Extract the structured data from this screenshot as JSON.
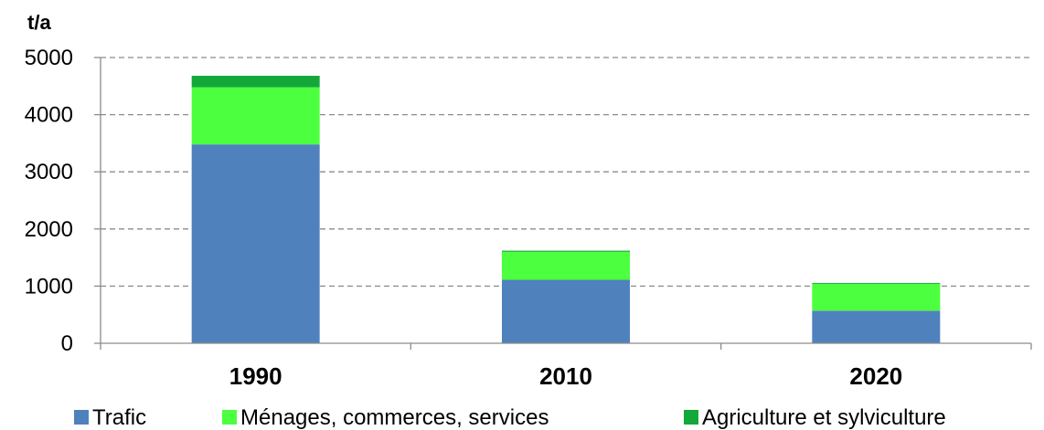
{
  "chart_data": {
    "type": "bar",
    "stacked": true,
    "unit": "t/a",
    "categories": [
      "1990",
      "2010",
      "2020"
    ],
    "series": [
      {
        "name": "Trafic",
        "color": "#4f81bd",
        "values": [
          3480,
          1110,
          570
        ]
      },
      {
        "name": "Ménages, commerces, services",
        "color": "#4cff3f",
        "values": [
          1000,
          490,
          470
        ]
      },
      {
        "name": "Agriculture et sylviculture",
        "color": "#14a83a",
        "values": [
          200,
          20,
          15
        ]
      }
    ],
    "y_ticks": [
      0,
      1000,
      2000,
      3000,
      4000,
      5000
    ],
    "ylim": [
      0,
      5000
    ],
    "grid": true,
    "legend_position": "bottom"
  }
}
